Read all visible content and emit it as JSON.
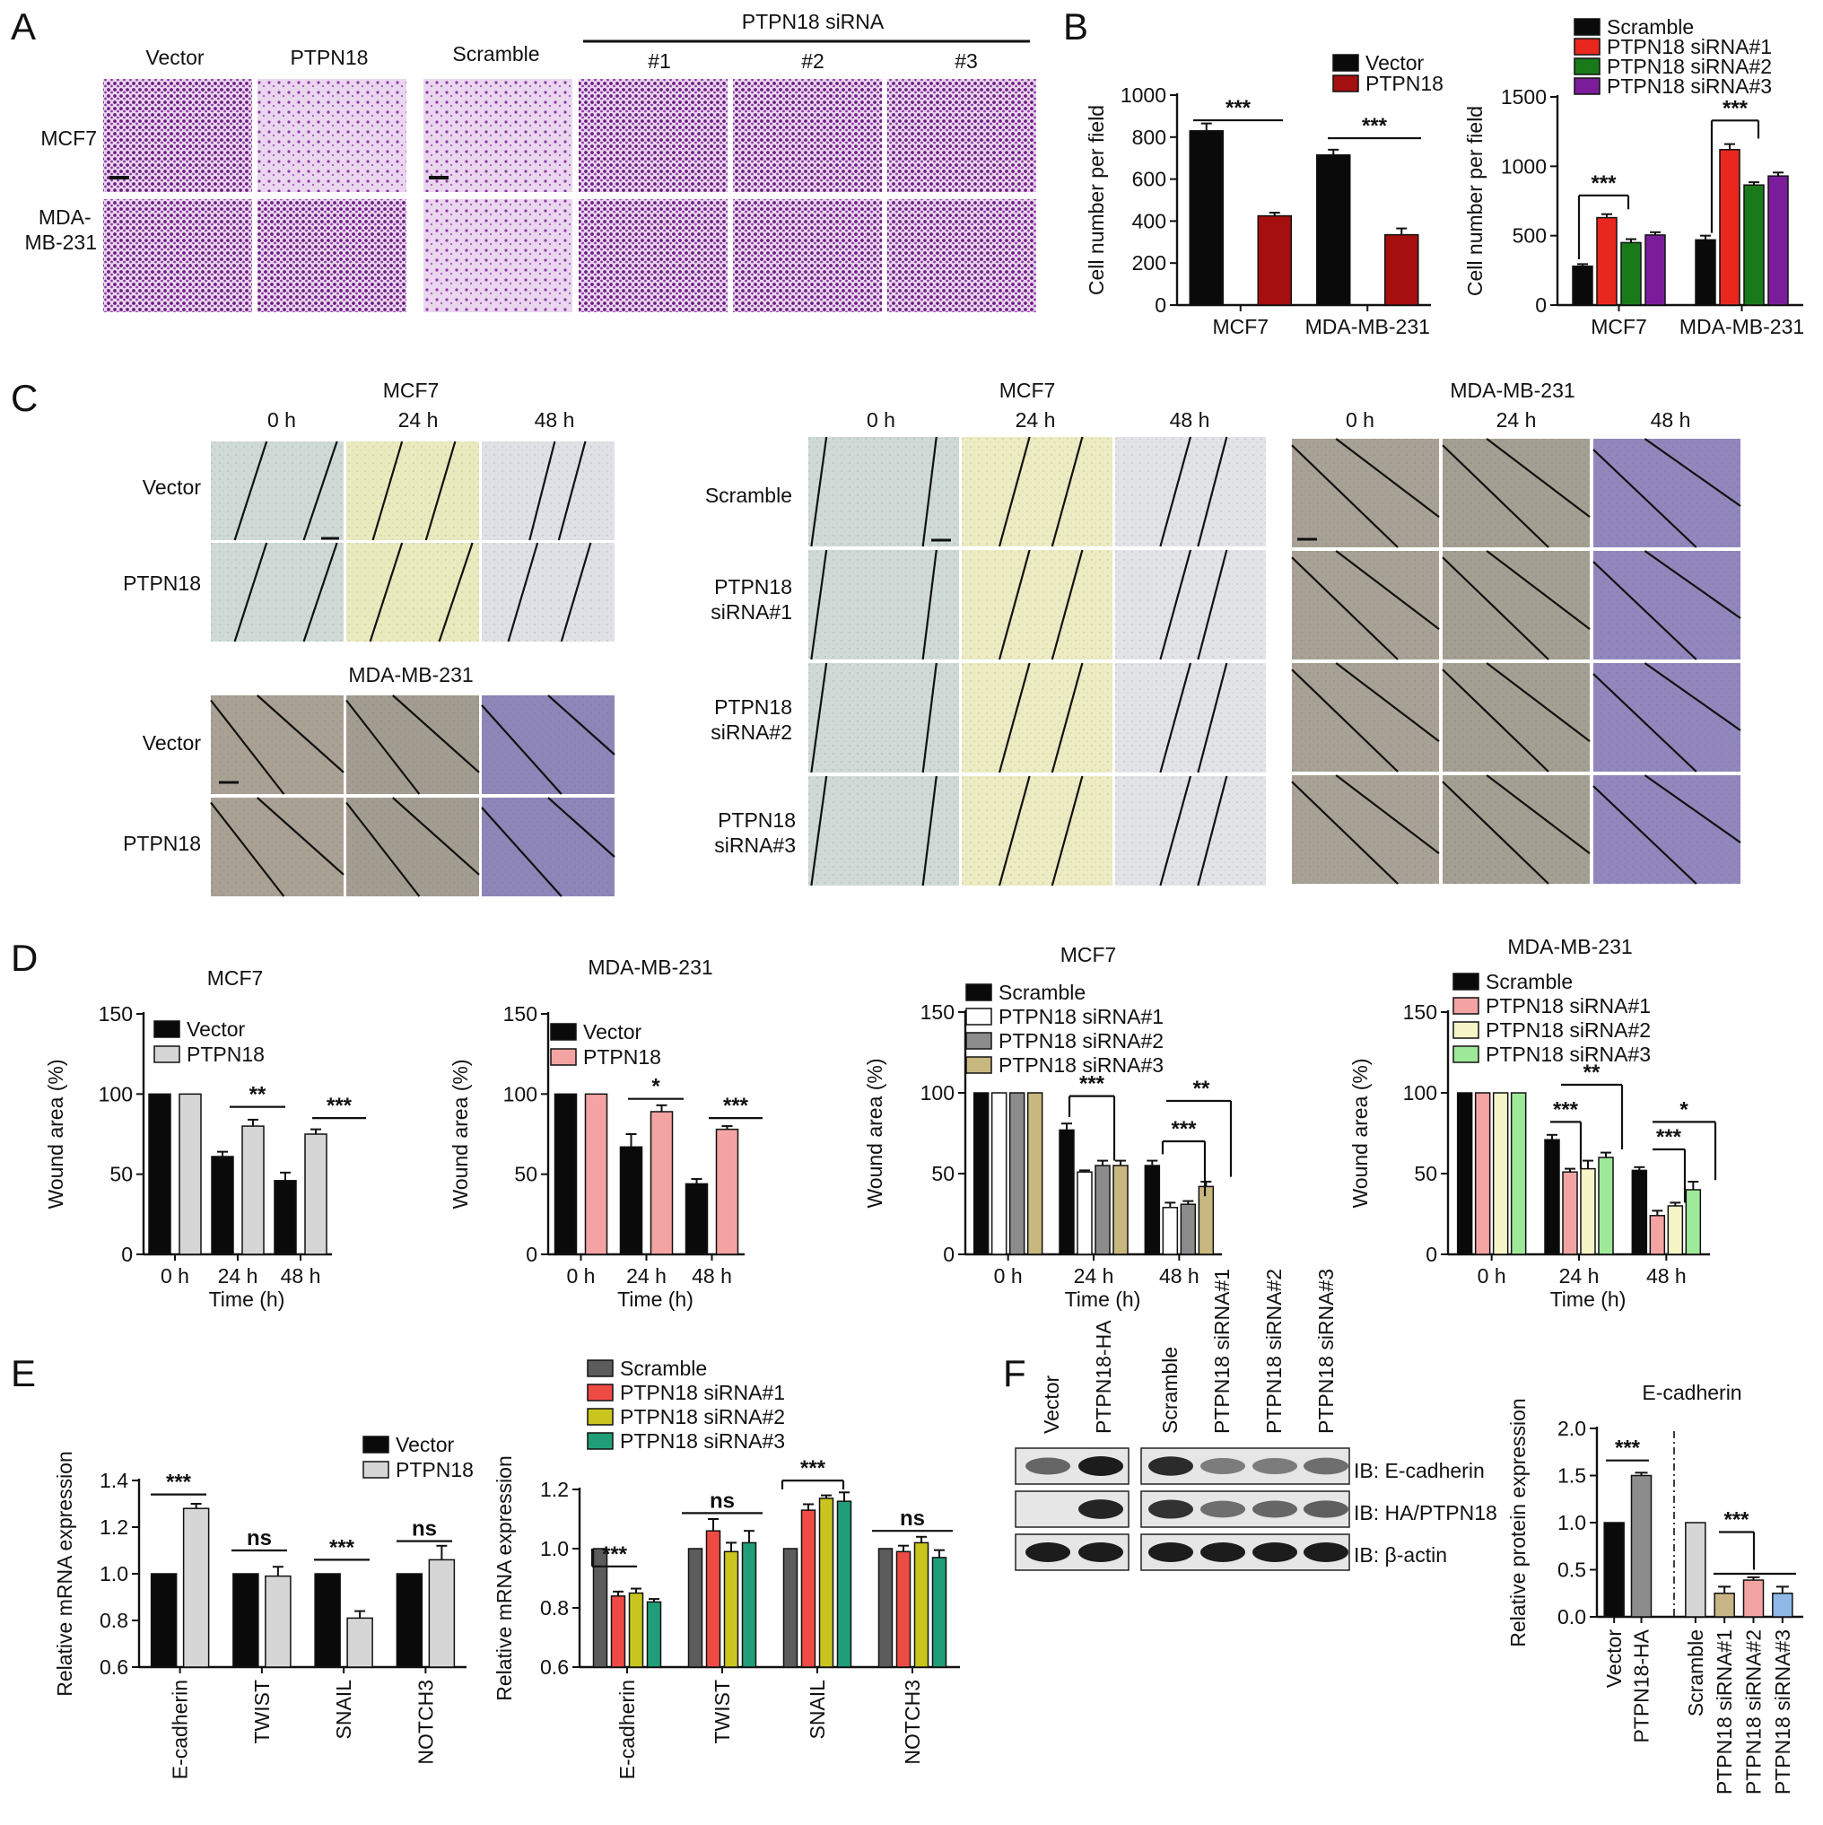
{
  "panels": {
    "A": {
      "letter": "A",
      "groups": [
        "Vector",
        "PTPN18",
        "Scramble",
        "#1",
        "#2",
        "#3"
      ],
      "siRNA_header": "PTPN18 siRNA",
      "rows": [
        "MCF7",
        "MDA-\nMB-231"
      ]
    },
    "B": {
      "letter": "B"
    },
    "C": {
      "letter": "C",
      "left_title_top": "MCF7",
      "left_title_bottom": "MDA-MB-231",
      "times": [
        "0 h",
        "24 h",
        "48 h"
      ],
      "left_rows": [
        "Vector",
        "PTPN18"
      ],
      "mid_title": "MCF7",
      "right_title": "MDA-MB-231",
      "mid_rows": [
        "Scramble",
        "PTPN18\nsiRNA#1",
        "PTPN18\nsiRNA#2",
        "PTPN18\nsiRNA#3"
      ]
    },
    "D": {
      "letter": "D"
    },
    "E": {
      "letter": "E"
    },
    "F": {
      "letter": "F",
      "lanes_left": [
        "Vector",
        "PTPN18-HA"
      ],
      "lanes_right": [
        "Scramble",
        "PTPN18 siRNA#1",
        "PTPN18 siRNA#2",
        "PTPN18 siRNA#3"
      ],
      "blots": [
        "IB: E-cadherin",
        "IB: HA/PTPN18",
        "IB: β-actin"
      ]
    }
  },
  "colors": {
    "black": "#0a0a0a",
    "dark_red": "#a50f0f",
    "red": "#e8271e",
    "green": "#1a7a1a",
    "purple": "#7b1d9a",
    "light_gray": "#d6d6d6",
    "pink": "#f4a3a3",
    "light_yellow": "#f6f5c8",
    "light_green": "#9ee89a",
    "gray": "#8c8c8c",
    "khaki": "#c8b77e",
    "dark_gray": "#5c5c5c",
    "coral": "#ef4b45",
    "olive_yellow": "#c9c51e",
    "teal": "#1f9e79",
    "tan": "#c8b484",
    "light_blue": "#8fb8e8",
    "white": "#ffffff",
    "crystal_violet": "#8a3a9e"
  },
  "chart_data": [
    {
      "id": "B-left",
      "type": "bar",
      "categories": [
        "MCF7",
        "MDA-MB-231"
      ],
      "ylabel": "Cell number per field",
      "ylim": [
        0,
        1000
      ],
      "yticks": [
        0,
        200,
        400,
        600,
        800,
        1000
      ],
      "series": [
        {
          "name": "Vector",
          "color": "#0a0a0a",
          "values": [
            830,
            715
          ],
          "err": [
            35,
            25
          ]
        },
        {
          "name": "PTPN18",
          "color": "#a50f0f",
          "values": [
            425,
            335
          ],
          "err": [
            15,
            30
          ]
        }
      ],
      "annotations": [
        "***",
        "***"
      ]
    },
    {
      "id": "B-right",
      "type": "bar",
      "categories": [
        "MCF7",
        "MDA-MB-231"
      ],
      "ylabel": "Cell number per field",
      "ylim": [
        0,
        1500
      ],
      "yticks": [
        0,
        500,
        1000,
        1500
      ],
      "series": [
        {
          "name": "Scramble",
          "color": "#0a0a0a",
          "values": [
            280,
            470
          ],
          "err": [
            15,
            30
          ]
        },
        {
          "name": "PTPN18 siRNA#1",
          "color": "#e8271e",
          "values": [
            630,
            1120
          ],
          "err": [
            25,
            40
          ]
        },
        {
          "name": "PTPN18 siRNA#2",
          "color": "#1a7a1a",
          "values": [
            450,
            865
          ],
          "err": [
            25,
            20
          ]
        },
        {
          "name": "PTPN18 siRNA#3",
          "color": "#7b1d9a",
          "values": [
            505,
            930
          ],
          "err": [
            20,
            25
          ]
        }
      ],
      "annotations": [
        "***",
        "***"
      ]
    },
    {
      "id": "D-1",
      "type": "bar",
      "title": "MCF7",
      "categories": [
        "0 h",
        "24 h",
        "48 h"
      ],
      "xlabel": "Time (h)",
      "ylabel": "Wound area (%)",
      "ylim": [
        0,
        150
      ],
      "yticks": [
        0,
        50,
        100,
        150
      ],
      "series": [
        {
          "name": "Vector",
          "color": "#0a0a0a",
          "values": [
            100,
            61,
            46
          ],
          "err": [
            0,
            3,
            5
          ]
        },
        {
          "name": "PTPN18",
          "color": "#d6d6d6",
          "values": [
            100,
            80,
            75
          ],
          "err": [
            0,
            4,
            3
          ]
        }
      ],
      "annotations": [
        "**",
        "***"
      ]
    },
    {
      "id": "D-2",
      "type": "bar",
      "title": "MDA-MB-231",
      "categories": [
        "0 h",
        "24 h",
        "48 h"
      ],
      "xlabel": "Time (h)",
      "ylabel": "Wound area (%)",
      "ylim": [
        0,
        150
      ],
      "yticks": [
        0,
        50,
        100,
        150
      ],
      "series": [
        {
          "name": "Vector",
          "color": "#0a0a0a",
          "values": [
            100,
            67,
            44
          ],
          "err": [
            0,
            8,
            3
          ]
        },
        {
          "name": "PTPN18",
          "color": "#f4a3a3",
          "values": [
            100,
            89,
            78
          ],
          "err": [
            0,
            4,
            2
          ]
        }
      ],
      "annotations": [
        "*",
        "***"
      ]
    },
    {
      "id": "D-3",
      "type": "bar",
      "title": "MCF7",
      "categories": [
        "0 h",
        "24 h",
        "48 h"
      ],
      "xlabel": "Time (h)",
      "ylabel": "Wound area (%)",
      "ylim": [
        0,
        150
      ],
      "yticks": [
        0,
        50,
        100,
        150
      ],
      "series": [
        {
          "name": "Scramble",
          "color": "#0a0a0a",
          "values": [
            100,
            77,
            55
          ],
          "err": [
            0,
            4,
            3
          ]
        },
        {
          "name": "PTPN18 siRNA#1",
          "color": "#ffffff",
          "values": [
            100,
            51,
            29
          ],
          "err": [
            0,
            1,
            3
          ]
        },
        {
          "name": "PTPN18 siRNA#2",
          "color": "#8c8c8c",
          "values": [
            100,
            55,
            31
          ],
          "err": [
            0,
            3,
            2
          ]
        },
        {
          "name": "PTPN18 siRNA#3",
          "color": "#c8b77e",
          "values": [
            100,
            55,
            42
          ],
          "err": [
            0,
            3,
            3
          ]
        }
      ],
      "annotations": [
        "***",
        "***",
        "**"
      ]
    },
    {
      "id": "D-4",
      "type": "bar",
      "title": "MDA-MB-231",
      "categories": [
        "0 h",
        "24 h",
        "48 h"
      ],
      "xlabel": "Time (h)",
      "ylabel": "Wound area (%)",
      "ylim": [
        0,
        150
      ],
      "yticks": [
        0,
        50,
        100,
        150
      ],
      "series": [
        {
          "name": "Scramble",
          "color": "#0a0a0a",
          "values": [
            100,
            71,
            52
          ],
          "err": [
            0,
            3,
            2
          ]
        },
        {
          "name": "PTPN18 siRNA#1",
          "color": "#f4a3a3",
          "values": [
            100,
            51,
            24
          ],
          "err": [
            0,
            2,
            3
          ]
        },
        {
          "name": "PTPN18 siRNA#2",
          "color": "#f6f5c8",
          "values": [
            100,
            53,
            30
          ],
          "err": [
            0,
            5,
            2
          ]
        },
        {
          "name": "PTPN18 siRNA#3",
          "color": "#9ee89a",
          "values": [
            100,
            60,
            40
          ],
          "err": [
            0,
            3,
            5
          ]
        }
      ],
      "annotations": [
        "***",
        "**",
        "***",
        "*"
      ]
    },
    {
      "id": "E-1",
      "type": "bar",
      "categories": [
        "E-cadherin",
        "TWIST",
        "SNAIL",
        "NOTCH3"
      ],
      "ylabel": "Relative mRNA expression",
      "ylim": [
        0.6,
        1.4
      ],
      "yticks": [
        0.6,
        0.8,
        1.0,
        1.2,
        1.4
      ],
      "series": [
        {
          "name": "Vector",
          "color": "#0a0a0a",
          "values": [
            1.0,
            1.0,
            1.0,
            1.0
          ],
          "err": [
            0,
            0,
            0,
            0
          ]
        },
        {
          "name": "PTPN18",
          "color": "#d6d6d6",
          "values": [
            1.28,
            0.99,
            0.81,
            1.06
          ],
          "err": [
            0.02,
            0.04,
            0.03,
            0.06
          ]
        }
      ],
      "annotations": [
        "***",
        "ns",
        "***",
        "ns"
      ]
    },
    {
      "id": "E-2",
      "type": "bar",
      "categories": [
        "E-cadherin",
        "TWIST",
        "SNAIL",
        "NOTCH3"
      ],
      "ylabel": "Relative mRNA expression",
      "ylim": [
        0.6,
        1.2
      ],
      "yticks": [
        0.6,
        0.8,
        1.0,
        1.2
      ],
      "series": [
        {
          "name": "Scramble",
          "color": "#5c5c5c",
          "values": [
            1.0,
            1.0,
            1.0,
            1.0
          ],
          "err": [
            0,
            0,
            0,
            0
          ]
        },
        {
          "name": "PTPN18 siRNA#1",
          "color": "#ef4b45",
          "values": [
            0.84,
            1.06,
            1.13,
            0.99
          ],
          "err": [
            0.015,
            0.04,
            0.02,
            0.02
          ]
        },
        {
          "name": "PTPN18 siRNA#2",
          "color": "#c9c51e",
          "values": [
            0.85,
            0.99,
            1.17,
            1.02
          ],
          "err": [
            0.015,
            0.03,
            0.01,
            0.02
          ]
        },
        {
          "name": "PTPN18 siRNA#3",
          "color": "#1f9e79",
          "values": [
            0.82,
            1.02,
            1.16,
            0.97
          ],
          "err": [
            0.01,
            0.04,
            0.03,
            0.025
          ]
        }
      ],
      "annotations": [
        "***",
        "ns",
        "***",
        "ns"
      ]
    },
    {
      "id": "F-chart",
      "type": "bar",
      "title": "E-cadherin",
      "categories": [
        "Vector",
        "PTPN18-HA",
        "Scramble",
        "PTPN18 siRNA#1",
        "PTPN18 siRNA#2",
        "PTPN18 siRNA#3"
      ],
      "ylabel": "Relative protein expression",
      "ylim": [
        0,
        2.0
      ],
      "yticks": [
        0.0,
        0.5,
        1.0,
        1.5,
        2.0
      ],
      "series": [
        {
          "colors": [
            "#0a0a0a",
            "#8c8c8c",
            "#d6d6d6",
            "#c8b484",
            "#f4a3a3",
            "#8fb8e8"
          ],
          "values": [
            1.0,
            1.5,
            1.0,
            0.25,
            0.39,
            0.25
          ],
          "err": [
            0,
            0.03,
            0,
            0.07,
            0.03,
            0.07
          ]
        }
      ],
      "annotations": [
        "***",
        "***"
      ]
    }
  ]
}
